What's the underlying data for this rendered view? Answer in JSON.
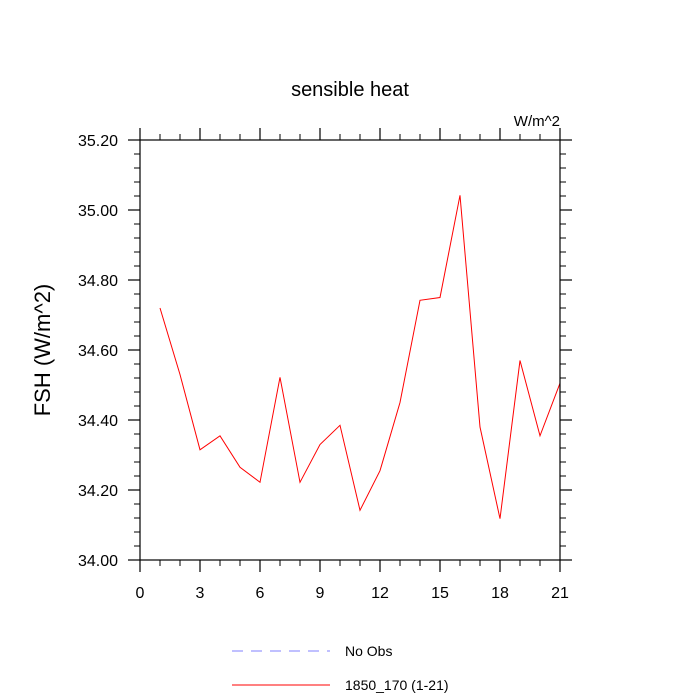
{
  "chart_data": {
    "type": "line",
    "title": "sensible heat",
    "units": "W/m^2",
    "ylabel": "FSH  (W/m^2)",
    "xlabel": "",
    "xlim": [
      0,
      21
    ],
    "ylim": [
      34.0,
      35.2
    ],
    "xticks": [
      0,
      3,
      6,
      9,
      12,
      15,
      18,
      21
    ],
    "xtick_labels": [
      "0",
      "3",
      "6",
      "9",
      "12",
      "15",
      "18",
      "21"
    ],
    "yticks": [
      34.0,
      34.2,
      34.4,
      34.6,
      34.8,
      35.0,
      35.2
    ],
    "ytick_labels": [
      "34.00",
      "34.20",
      "34.40",
      "34.60",
      "34.80",
      "35.00",
      "35.20"
    ],
    "grid": false,
    "legend_position": "bottom",
    "series": [
      {
        "name": "1850_170 (1-21)",
        "color": "#ff0000",
        "style": "solid",
        "x": [
          1,
          2,
          3,
          4,
          5,
          6,
          7,
          8,
          9,
          10,
          11,
          12,
          13,
          14,
          15,
          16,
          17,
          18,
          19,
          20,
          21
        ],
        "y": [
          34.72,
          34.53,
          34.315,
          34.355,
          34.265,
          34.222,
          34.522,
          34.222,
          34.33,
          34.385,
          34.142,
          34.255,
          34.45,
          34.742,
          34.75,
          35.042,
          34.38,
          34.118,
          34.57,
          34.355,
          34.505
        ]
      }
    ],
    "legend": [
      {
        "label": "No Obs",
        "color": "#8080ff",
        "style": "dashed"
      },
      {
        "label": "1850_170 (1-21)",
        "color": "#ff0000",
        "style": "solid"
      }
    ]
  }
}
